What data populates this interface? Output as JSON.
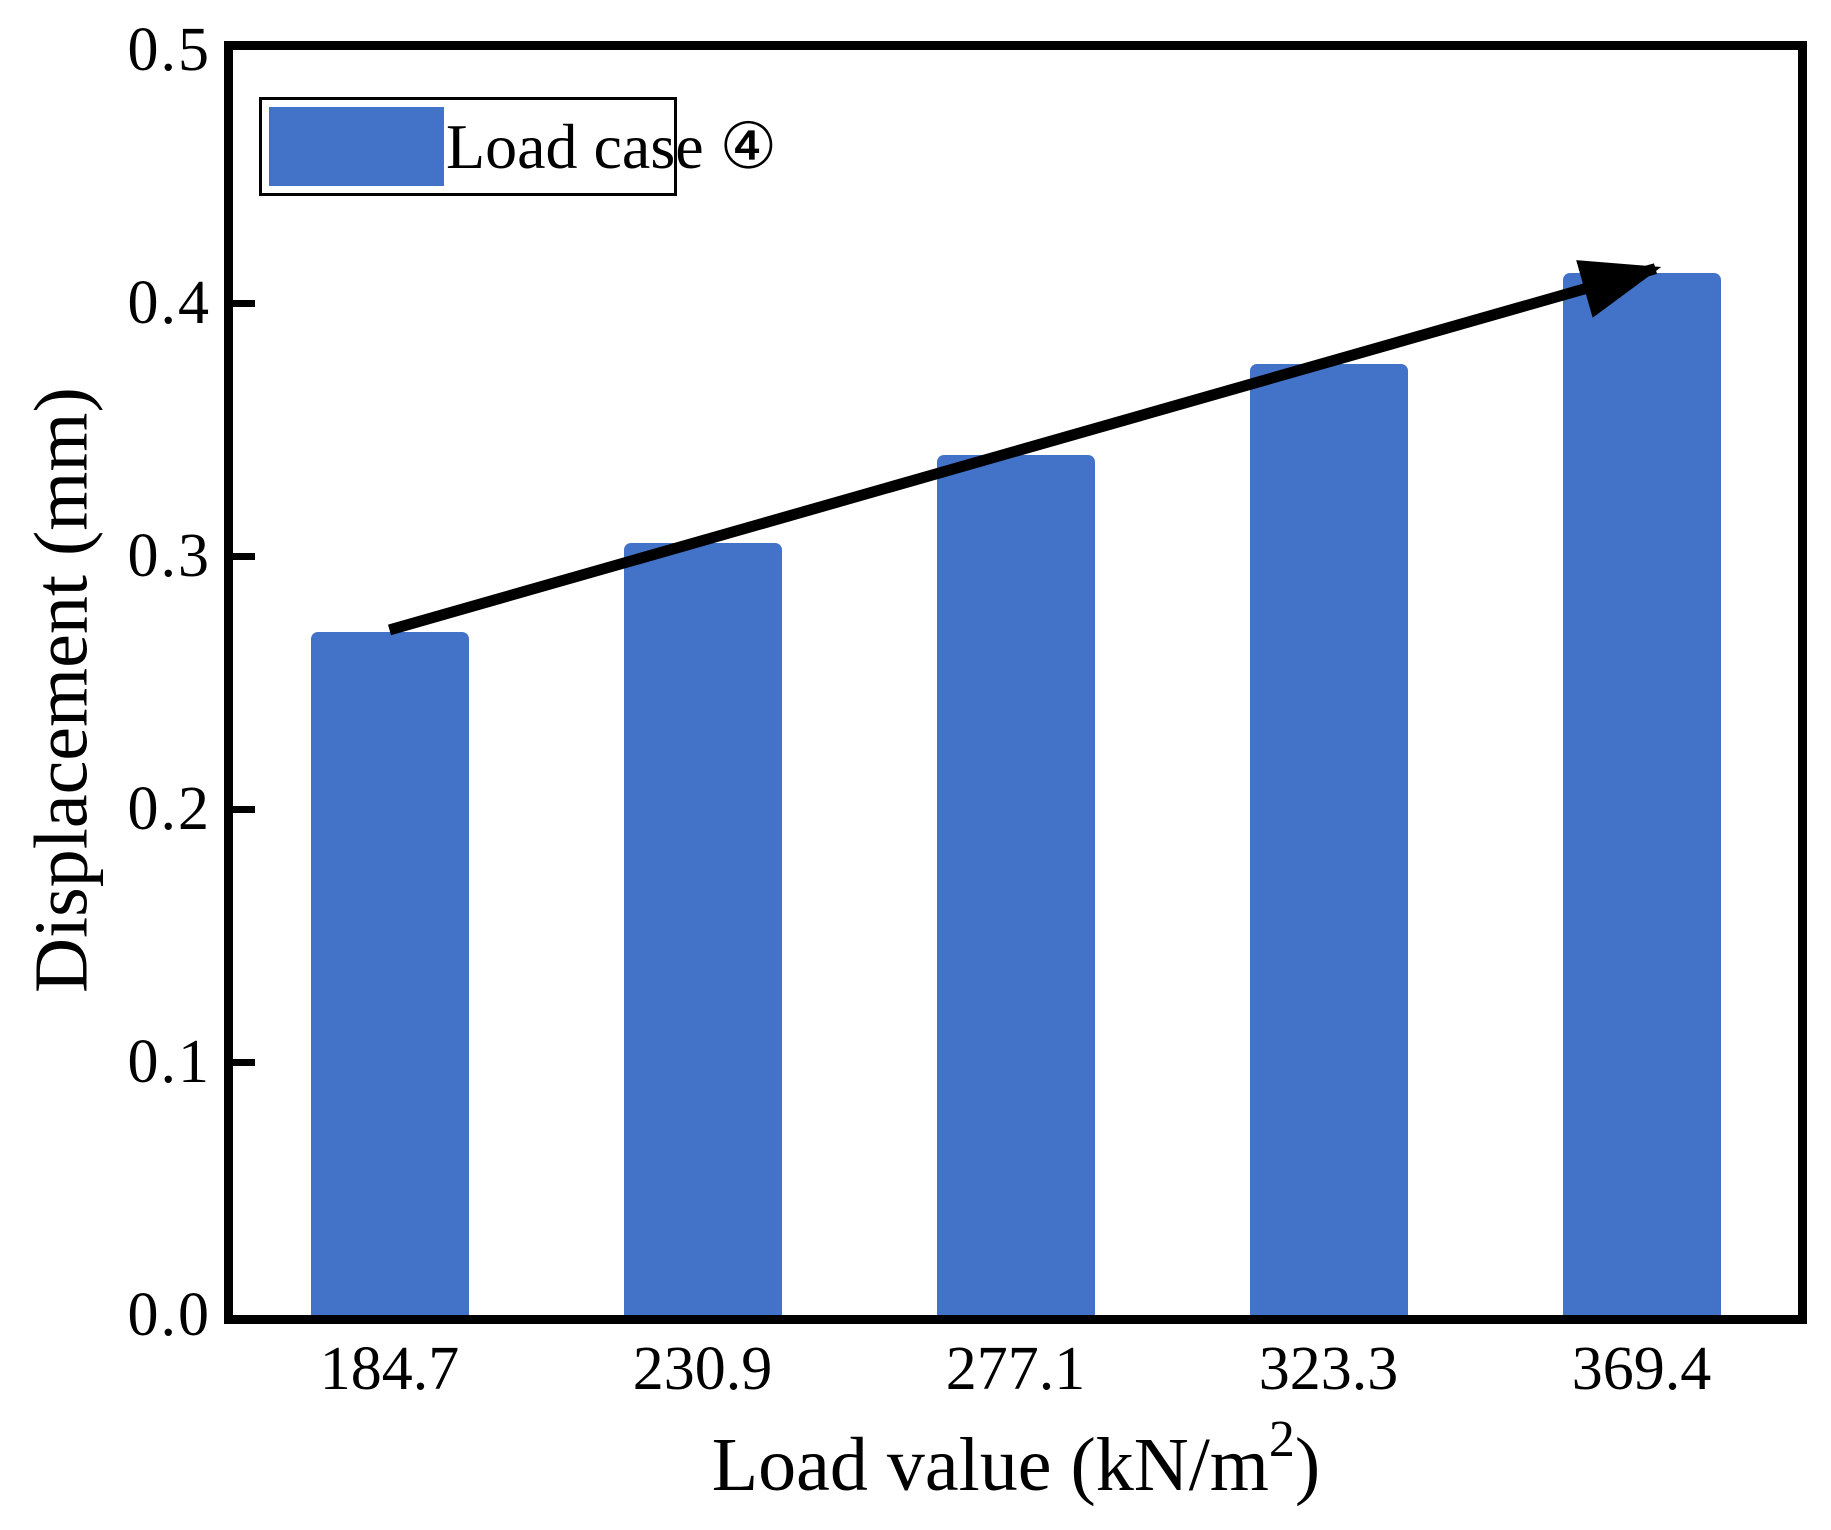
{
  "figure": {
    "legend": {
      "label": "Load case ④",
      "swatch_color": "#4373c8"
    },
    "colors": {
      "bar": "#4373c8",
      "axis": "#000000",
      "text": "#000000",
      "background": "#ffffff",
      "arrow": "#000000"
    }
  },
  "chart_data": {
    "type": "bar",
    "title": "",
    "categories": [
      "184.7",
      "230.9",
      "277.1",
      "323.3",
      "369.4"
    ],
    "values": [
      0.27,
      0.305,
      0.34,
      0.376,
      0.412
    ],
    "series_name": "Load case ④",
    "xlabel": "Load value (kN/m²)",
    "xlabel_parts": {
      "pre": "Load value (kN/m",
      "sup": "2",
      "post": ")"
    },
    "ylabel": "Displacement (mm)",
    "ylim": [
      0.0,
      0.5
    ],
    "ytick_labels": [
      "0.0",
      "0.1",
      "0.2",
      "0.3",
      "0.4",
      "0.5"
    ],
    "grid": false,
    "legend_position": "top-left",
    "annotation": {
      "type": "arrow",
      "from_category_index": 0,
      "to_category_index": 4,
      "description": "trend arrow from top of first bar to top of last bar"
    }
  }
}
